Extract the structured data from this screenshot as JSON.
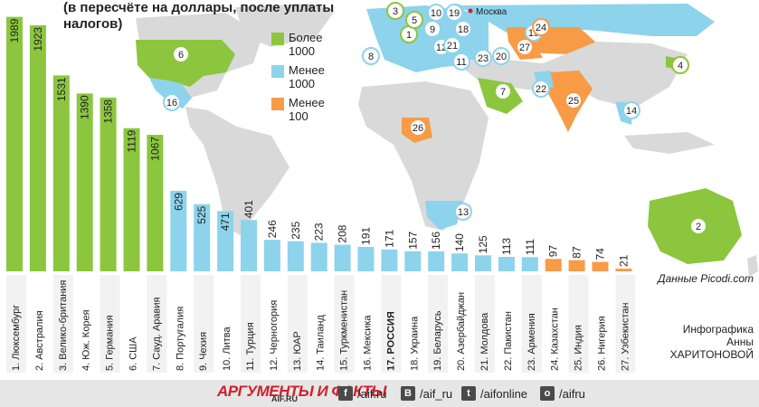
{
  "subtitle": "(в пересчёте на доллары, после уплаты налогов)",
  "legend": [
    {
      "label": "Более 1000",
      "color": "#8cc63f"
    },
    {
      "label": "Менее 1000",
      "color": "#8dd3ec"
    },
    {
      "label": "Менее 100",
      "color": "#f79b47"
    }
  ],
  "map_markers": {
    "moscow_label": "Москва"
  },
  "credits": {
    "source": "Данные Picodi.com",
    "author": "Инфографика Анны ХАРИТОНОВОЙ"
  },
  "footer": {
    "brand": "АРГУМЕНТЫ И ФАКТЫ",
    "brand_sub": "AIF.RU",
    "social": [
      {
        "icon": "facebook-icon",
        "glyph": "f",
        "label": "/aif.ru"
      },
      {
        "icon": "vk-icon",
        "glyph": "B",
        "label": "/aif_ru"
      },
      {
        "icon": "twitter-icon",
        "glyph": "t",
        "label": "/aifonline"
      },
      {
        "icon": "odnoklassniki-icon",
        "glyph": "o",
        "label": "/aifru"
      }
    ]
  },
  "chart_data": {
    "type": "bar",
    "categories": [
      "1. Люксембург",
      "2. Австралия",
      "3. Велико-британия",
      "4. Юж. Корея",
      "5. Германия",
      "6. США",
      "7. Сауд. Аравия",
      "8. Португалия",
      "9. Чехия",
      "10. Литва",
      "11. Турция",
      "12. Черногория",
      "13. ЮАР",
      "14. Таиланд",
      "15. Туркменистан",
      "16. Мексика",
      "17. РОССИЯ",
      "18. Украина",
      "19. Беларусь",
      "20. Азербайджан",
      "21. Молдова",
      "22. Пакистан",
      "23. Армения",
      "24. Казахстан",
      "25. Индия",
      "26. Нигерия",
      "27. Узбекистан"
    ],
    "values": [
      1989,
      1923,
      1531,
      1390,
      1358,
      1119,
      1067,
      629,
      525,
      471,
      401,
      246,
      235,
      223,
      208,
      191,
      171,
      157,
      156,
      140,
      125,
      113,
      111,
      97,
      87,
      74,
      21
    ],
    "value_labels": [
      "1989",
      "1923",
      "1531",
      "1390",
      "1358",
      "1119",
      "1067",
      "629",
      "525",
      "471",
      "401",
      "246",
      "235",
      "223",
      "208",
      "191",
      "171",
      "157",
      "156",
      "140",
      "125",
      "113",
      "111",
      "97",
      "87",
      "74",
      "21"
    ],
    "colors": {
      "high": "#8cc63f",
      "mid": "#8dd3ec",
      "low": "#f79b47"
    },
    "ylim": [
      0,
      2050
    ]
  }
}
